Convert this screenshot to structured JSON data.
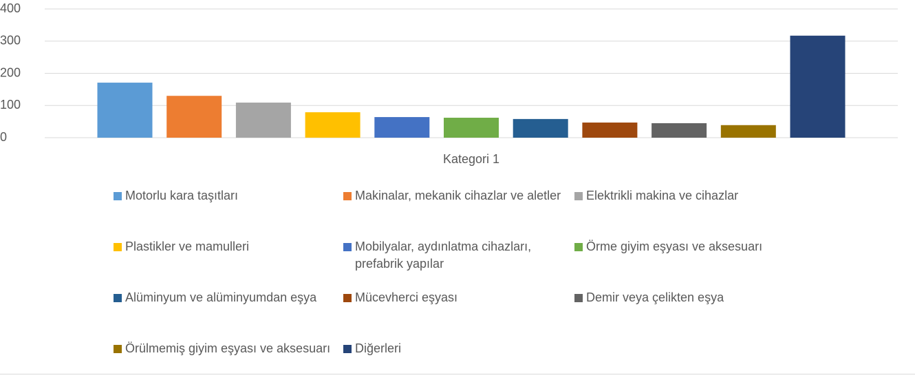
{
  "chart_data": {
    "type": "bar",
    "categories": [
      "Kategori 1"
    ],
    "series": [
      {
        "name": "Motorlu kara taşıtları",
        "color": "#5b9bd5",
        "values": [
          171
        ]
      },
      {
        "name": "Makinalar, mekanik cihazlar ve aletler",
        "color": "#ed7d31",
        "values": [
          130
        ]
      },
      {
        "name": "Elektrikli makina ve cihazlar",
        "color": "#a5a5a5",
        "values": [
          109
        ]
      },
      {
        "name": "Plastikler ve mamulleri",
        "color": "#ffc000",
        "values": [
          79
        ]
      },
      {
        "name": "Mobilyalar, aydınlatma cihazları, prefabrik yapılar",
        "color": "#4472c4",
        "values": [
          64
        ]
      },
      {
        "name": "Örme giyim eşyası ve aksesuarı",
        "color": "#70ad47",
        "values": [
          62
        ]
      },
      {
        "name": "Alüminyum ve alüminyumdan eşya",
        "color": "#255e91",
        "values": [
          58
        ]
      },
      {
        "name": "Mücevherci eşyası",
        "color": "#9e480e",
        "values": [
          47
        ]
      },
      {
        "name": "Demir veya çelikten eşya",
        "color": "#636363",
        "values": [
          45
        ]
      },
      {
        "name": "Örülmemiş giyim eşyası ve aksesuarı",
        "color": "#997300",
        "values": [
          39
        ]
      },
      {
        "name": "Diğerleri",
        "color": "#264478",
        "values": [
          317
        ]
      }
    ],
    "ylim": [
      0,
      400
    ],
    "yticks": [
      0,
      100,
      200,
      300,
      400
    ],
    "grid": true,
    "legend": "bottom"
  }
}
